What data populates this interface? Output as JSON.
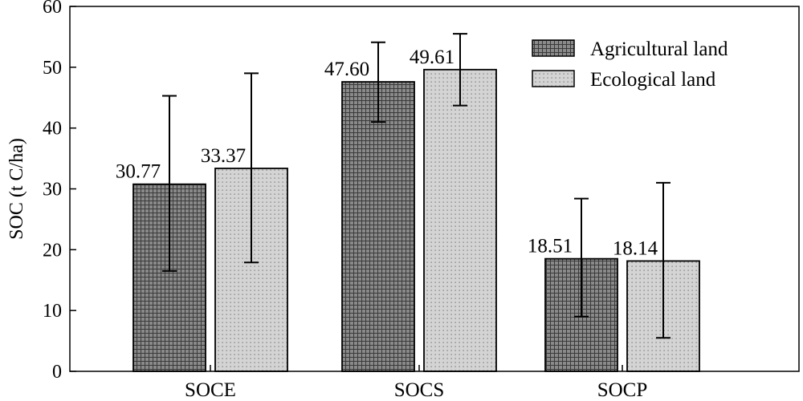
{
  "chart_data": {
    "type": "bar",
    "categories": [
      "SOCE",
      "SOCS",
      "SOCP"
    ],
    "series": [
      {
        "name": "Agricultural land",
        "values": [
          30.77,
          47.6,
          18.51
        ],
        "labels": [
          "30.77",
          "47.60",
          "18.51"
        ],
        "error_low": [
          16.5,
          41.0,
          9.0
        ],
        "error_high": [
          45.3,
          54.1,
          28.4
        ],
        "fill": "#888888",
        "pattern": "grid"
      },
      {
        "name": "Ecological land",
        "values": [
          33.37,
          49.61,
          18.14
        ],
        "labels": [
          "33.37",
          "49.61",
          "18.14"
        ],
        "error_low": [
          17.9,
          43.7,
          5.5
        ],
        "error_high": [
          49.0,
          55.5,
          31.0
        ],
        "fill": "#d2d2d2",
        "pattern": "dots"
      }
    ],
    "xlabel": "",
    "ylabel": "SOC (t C/ha)",
    "ylim": [
      0,
      60
    ],
    "yticks": [
      "0",
      "10",
      "20",
      "30",
      "40",
      "50",
      "60"
    ],
    "grid": false,
    "legend_position": "top-right"
  }
}
